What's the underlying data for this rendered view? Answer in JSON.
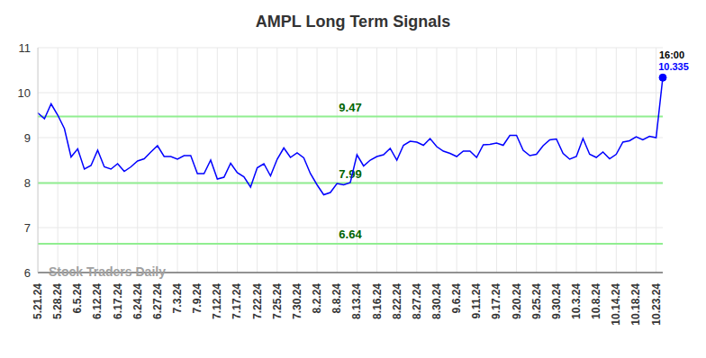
{
  "chart_data": {
    "type": "line",
    "title": "AMPL Long Term Signals",
    "categories": [
      "5.21.24",
      null,
      null,
      "5.28.24",
      null,
      null,
      "6.5.24",
      null,
      null,
      "6.12.24",
      null,
      null,
      "6.17.24",
      null,
      null,
      "6.24.24",
      null,
      null,
      "6.27.24",
      null,
      null,
      "7.3.24",
      null,
      null,
      "7.9.24",
      null,
      null,
      "7.12.24",
      null,
      null,
      "7.17.24",
      null,
      null,
      "7.22.24",
      null,
      null,
      "7.25.24",
      null,
      null,
      "7.30.24",
      null,
      null,
      "8.2.24",
      null,
      null,
      "8.8.24",
      null,
      null,
      "8.13.24",
      null,
      null,
      "8.16.24",
      null,
      null,
      "8.22.24",
      null,
      null,
      "8.27.24",
      null,
      null,
      "8.30.24",
      null,
      null,
      "9.6.24",
      null,
      null,
      "9.11.24",
      null,
      null,
      "9.17.24",
      null,
      null,
      "9.20.24",
      null,
      null,
      "9.25.24",
      null,
      null,
      "9.30.24",
      null,
      null,
      "10.3.24",
      null,
      null,
      "10.8.24",
      null,
      null,
      "10.14.24",
      null,
      null,
      "10.18.24",
      null,
      null,
      "10.23.24",
      null
    ],
    "values": [
      9.55,
      9.42,
      9.75,
      9.5,
      9.2,
      8.57,
      8.75,
      8.3,
      8.38,
      8.72,
      8.35,
      8.3,
      8.42,
      8.25,
      8.35,
      8.48,
      8.53,
      8.68,
      8.82,
      8.58,
      8.58,
      8.52,
      8.6,
      8.6,
      8.2,
      8.2,
      8.5,
      8.08,
      8.12,
      8.43,
      8.22,
      8.13,
      7.9,
      8.33,
      8.42,
      8.15,
      8.52,
      8.77,
      8.56,
      8.66,
      8.55,
      8.2,
      7.95,
      7.73,
      7.78,
      7.98,
      7.95,
      8.0,
      8.62,
      8.37,
      8.5,
      8.58,
      8.62,
      8.76,
      8.5,
      8.83,
      8.92,
      8.9,
      8.83,
      8.98,
      8.8,
      8.7,
      8.65,
      8.58,
      8.7,
      8.7,
      8.56,
      8.84,
      8.85,
      8.88,
      8.83,
      9.05,
      9.05,
      8.72,
      8.6,
      8.63,
      8.82,
      8.95,
      8.97,
      8.65,
      8.52,
      8.58,
      8.98,
      8.63,
      8.56,
      8.68,
      8.53,
      8.63,
      8.9,
      8.93,
      9.02,
      8.95,
      9.03,
      9.0,
      10.335
    ],
    "color": "#0000ff",
    "ylim": [
      6,
      11
    ],
    "yticks": [
      6,
      7,
      8,
      9,
      10,
      11
    ],
    "grid": true,
    "levels": {
      "values": [
        9.47,
        7.99,
        6.64
      ],
      "color": "#90ee90"
    },
    "annotation": {
      "text": "16:00"
    },
    "watermark": "Stock Traders Daily"
  }
}
